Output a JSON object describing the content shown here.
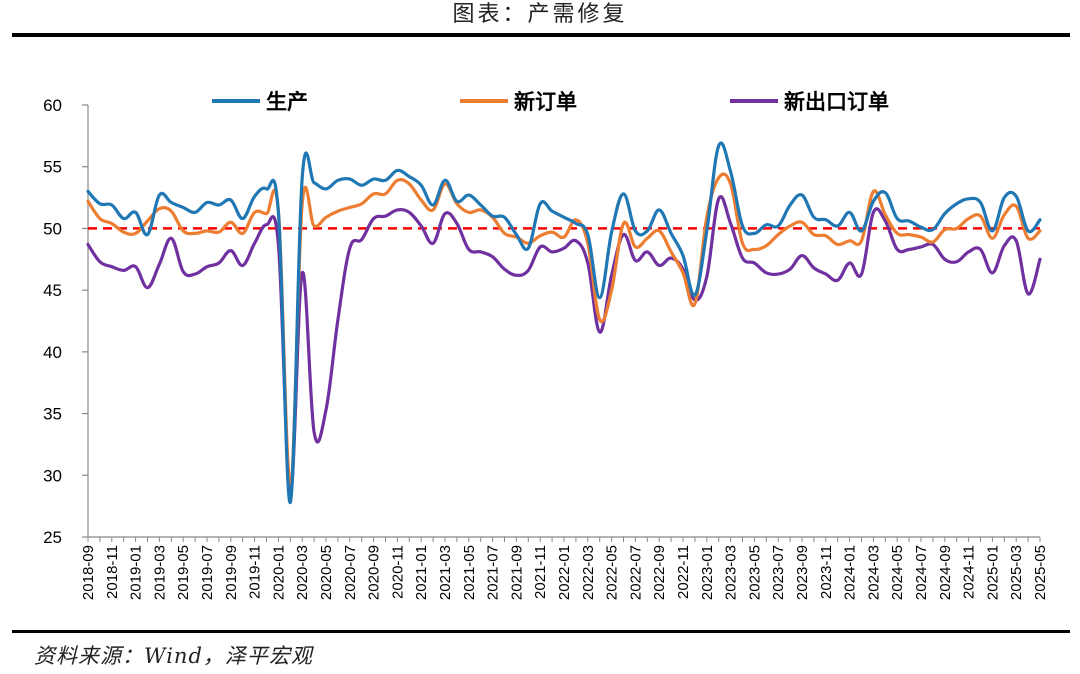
{
  "figure_title": "图表：产需修复",
  "source_note": "资料来源：Wind，泽平宏观",
  "chart_data": {
    "type": "line",
    "title": "",
    "xlabel": "",
    "ylabel": "",
    "ylim": [
      25,
      60
    ],
    "yticks": [
      25,
      30,
      35,
      40,
      45,
      50,
      55,
      60
    ],
    "reference_line": {
      "value": 50,
      "color": "#ff0000",
      "style": "dashed"
    },
    "legend_position": "top",
    "x": [
      "2018-09",
      "2018-10",
      "2018-11",
      "2018-12",
      "2019-01",
      "2019-02",
      "2019-03",
      "2019-04",
      "2019-05",
      "2019-06",
      "2019-07",
      "2019-08",
      "2019-09",
      "2019-10",
      "2019-11",
      "2019-12",
      "2020-01",
      "2020-02",
      "2020-03",
      "2020-04",
      "2020-05",
      "2020-06",
      "2020-07",
      "2020-08",
      "2020-09",
      "2020-10",
      "2020-11",
      "2020-12",
      "2021-01",
      "2021-02",
      "2021-03",
      "2021-04",
      "2021-05",
      "2021-06",
      "2021-07",
      "2021-08",
      "2021-09",
      "2021-10",
      "2021-11",
      "2021-12",
      "2022-01",
      "2022-02",
      "2022-03",
      "2022-04",
      "2022-05",
      "2022-06",
      "2022-07",
      "2022-08",
      "2022-09",
      "2022-10",
      "2022-11",
      "2022-12",
      "2023-01",
      "2023-02",
      "2023-03",
      "2023-04",
      "2023-05",
      "2023-06",
      "2023-07",
      "2023-08",
      "2023-09",
      "2023-10",
      "2023-11",
      "2023-12",
      "2024-01",
      "2024-02",
      "2024-03",
      "2024-04",
      "2024-05",
      "2024-06",
      "2024-07",
      "2024-08",
      "2024-09",
      "2024-10",
      "2024-11",
      "2024-12",
      "2025-01",
      "2025-02",
      "2025-03",
      "2025-04",
      "2025-05"
    ],
    "x_tick_labels": [
      "2018-09",
      "2018-11",
      "2019-01",
      "2019-03",
      "2019-05",
      "2019-07",
      "2019-09",
      "2019-11",
      "2020-01",
      "2020-03",
      "2020-05",
      "2020-07",
      "2020-09",
      "2020-11",
      "2021-01",
      "2021-03",
      "2021-05",
      "2021-07",
      "2021-09",
      "2021-11",
      "2022-01",
      "2022-03",
      "2022-05",
      "2022-07",
      "2022-09",
      "2022-11",
      "2023-01",
      "2023-03",
      "2023-05",
      "2023-07",
      "2023-09",
      "2023-11",
      "2024-01",
      "2024-03",
      "2024-05",
      "2024-07",
      "2024-09",
      "2024-11",
      "2025-01",
      "2025-03",
      "2025-05"
    ],
    "series": [
      {
        "name": "生产",
        "color": "#1f77b4",
        "values": [
          53.0,
          52.0,
          51.9,
          50.8,
          51.3,
          49.5,
          52.7,
          52.1,
          51.7,
          51.3,
          52.1,
          51.9,
          52.3,
          50.8,
          52.6,
          53.2,
          51.3,
          27.8,
          54.1,
          53.7,
          53.2,
          53.9,
          54.0,
          53.5,
          54.0,
          53.9,
          54.7,
          54.2,
          53.5,
          51.9,
          53.9,
          52.2,
          52.7,
          51.9,
          51.0,
          50.9,
          49.5,
          48.4,
          52.0,
          51.4,
          50.9,
          50.4,
          49.5,
          44.4,
          49.7,
          52.8,
          49.8,
          49.8,
          51.5,
          49.6,
          47.8,
          44.6,
          49.8,
          56.7,
          54.6,
          50.2,
          49.6,
          50.3,
          50.2,
          51.9,
          52.7,
          50.9,
          50.7,
          50.2,
          51.3,
          49.8,
          52.2,
          52.9,
          50.8,
          50.6,
          50.1,
          49.9,
          51.2,
          52.0,
          52.4,
          52.1,
          49.8,
          52.5,
          52.6,
          49.8,
          50.7
        ]
      },
      {
        "name": "新订单",
        "color": "#ed7d31",
        "values": [
          52.2,
          50.8,
          50.4,
          49.7,
          49.6,
          50.6,
          51.6,
          51.4,
          49.8,
          49.6,
          49.8,
          49.7,
          50.5,
          49.6,
          51.3,
          51.2,
          51.4,
          29.3,
          52.0,
          50.2,
          50.9,
          51.4,
          51.7,
          52.0,
          52.8,
          52.8,
          53.9,
          53.6,
          52.3,
          51.5,
          53.6,
          52.0,
          51.3,
          51.5,
          50.9,
          49.6,
          49.3,
          48.8,
          49.4,
          49.7,
          49.3,
          50.7,
          48.8,
          42.6,
          45.0,
          50.4,
          48.5,
          49.2,
          49.8,
          48.1,
          46.4,
          43.9,
          50.9,
          54.1,
          53.6,
          48.8,
          48.3,
          48.6,
          49.5,
          50.2,
          50.5,
          49.5,
          49.4,
          48.7,
          49.0,
          49.0,
          53.0,
          51.1,
          49.6,
          49.5,
          49.3,
          48.9,
          49.9,
          50.0,
          50.8,
          51.0,
          49.2,
          51.1,
          51.8,
          49.2,
          49.8
        ]
      },
      {
        "name": "新出口订单",
        "color": "#7030a0",
        "values": [
          48.7,
          47.3,
          46.9,
          46.6,
          46.9,
          45.2,
          47.1,
          49.2,
          46.5,
          46.3,
          46.9,
          47.2,
          48.2,
          47.0,
          48.8,
          50.3,
          48.7,
          28.7,
          46.4,
          33.5,
          35.3,
          42.6,
          48.4,
          49.1,
          50.8,
          51.0,
          51.5,
          51.3,
          50.2,
          48.8,
          51.2,
          50.4,
          48.3,
          48.1,
          47.7,
          46.7,
          46.2,
          46.6,
          48.5,
          48.1,
          48.4,
          49.0,
          47.2,
          41.6,
          46.2,
          49.5,
          47.4,
          48.1,
          47.0,
          47.6,
          46.7,
          44.2,
          46.1,
          52.4,
          50.4,
          47.6,
          47.2,
          46.4,
          46.3,
          46.7,
          47.8,
          46.8,
          46.3,
          45.8,
          47.2,
          46.3,
          51.3,
          50.6,
          48.3,
          48.3,
          48.5,
          48.7,
          47.5,
          47.3,
          48.1,
          48.3,
          46.4,
          48.6,
          49.0,
          44.7,
          47.5
        ]
      }
    ]
  }
}
